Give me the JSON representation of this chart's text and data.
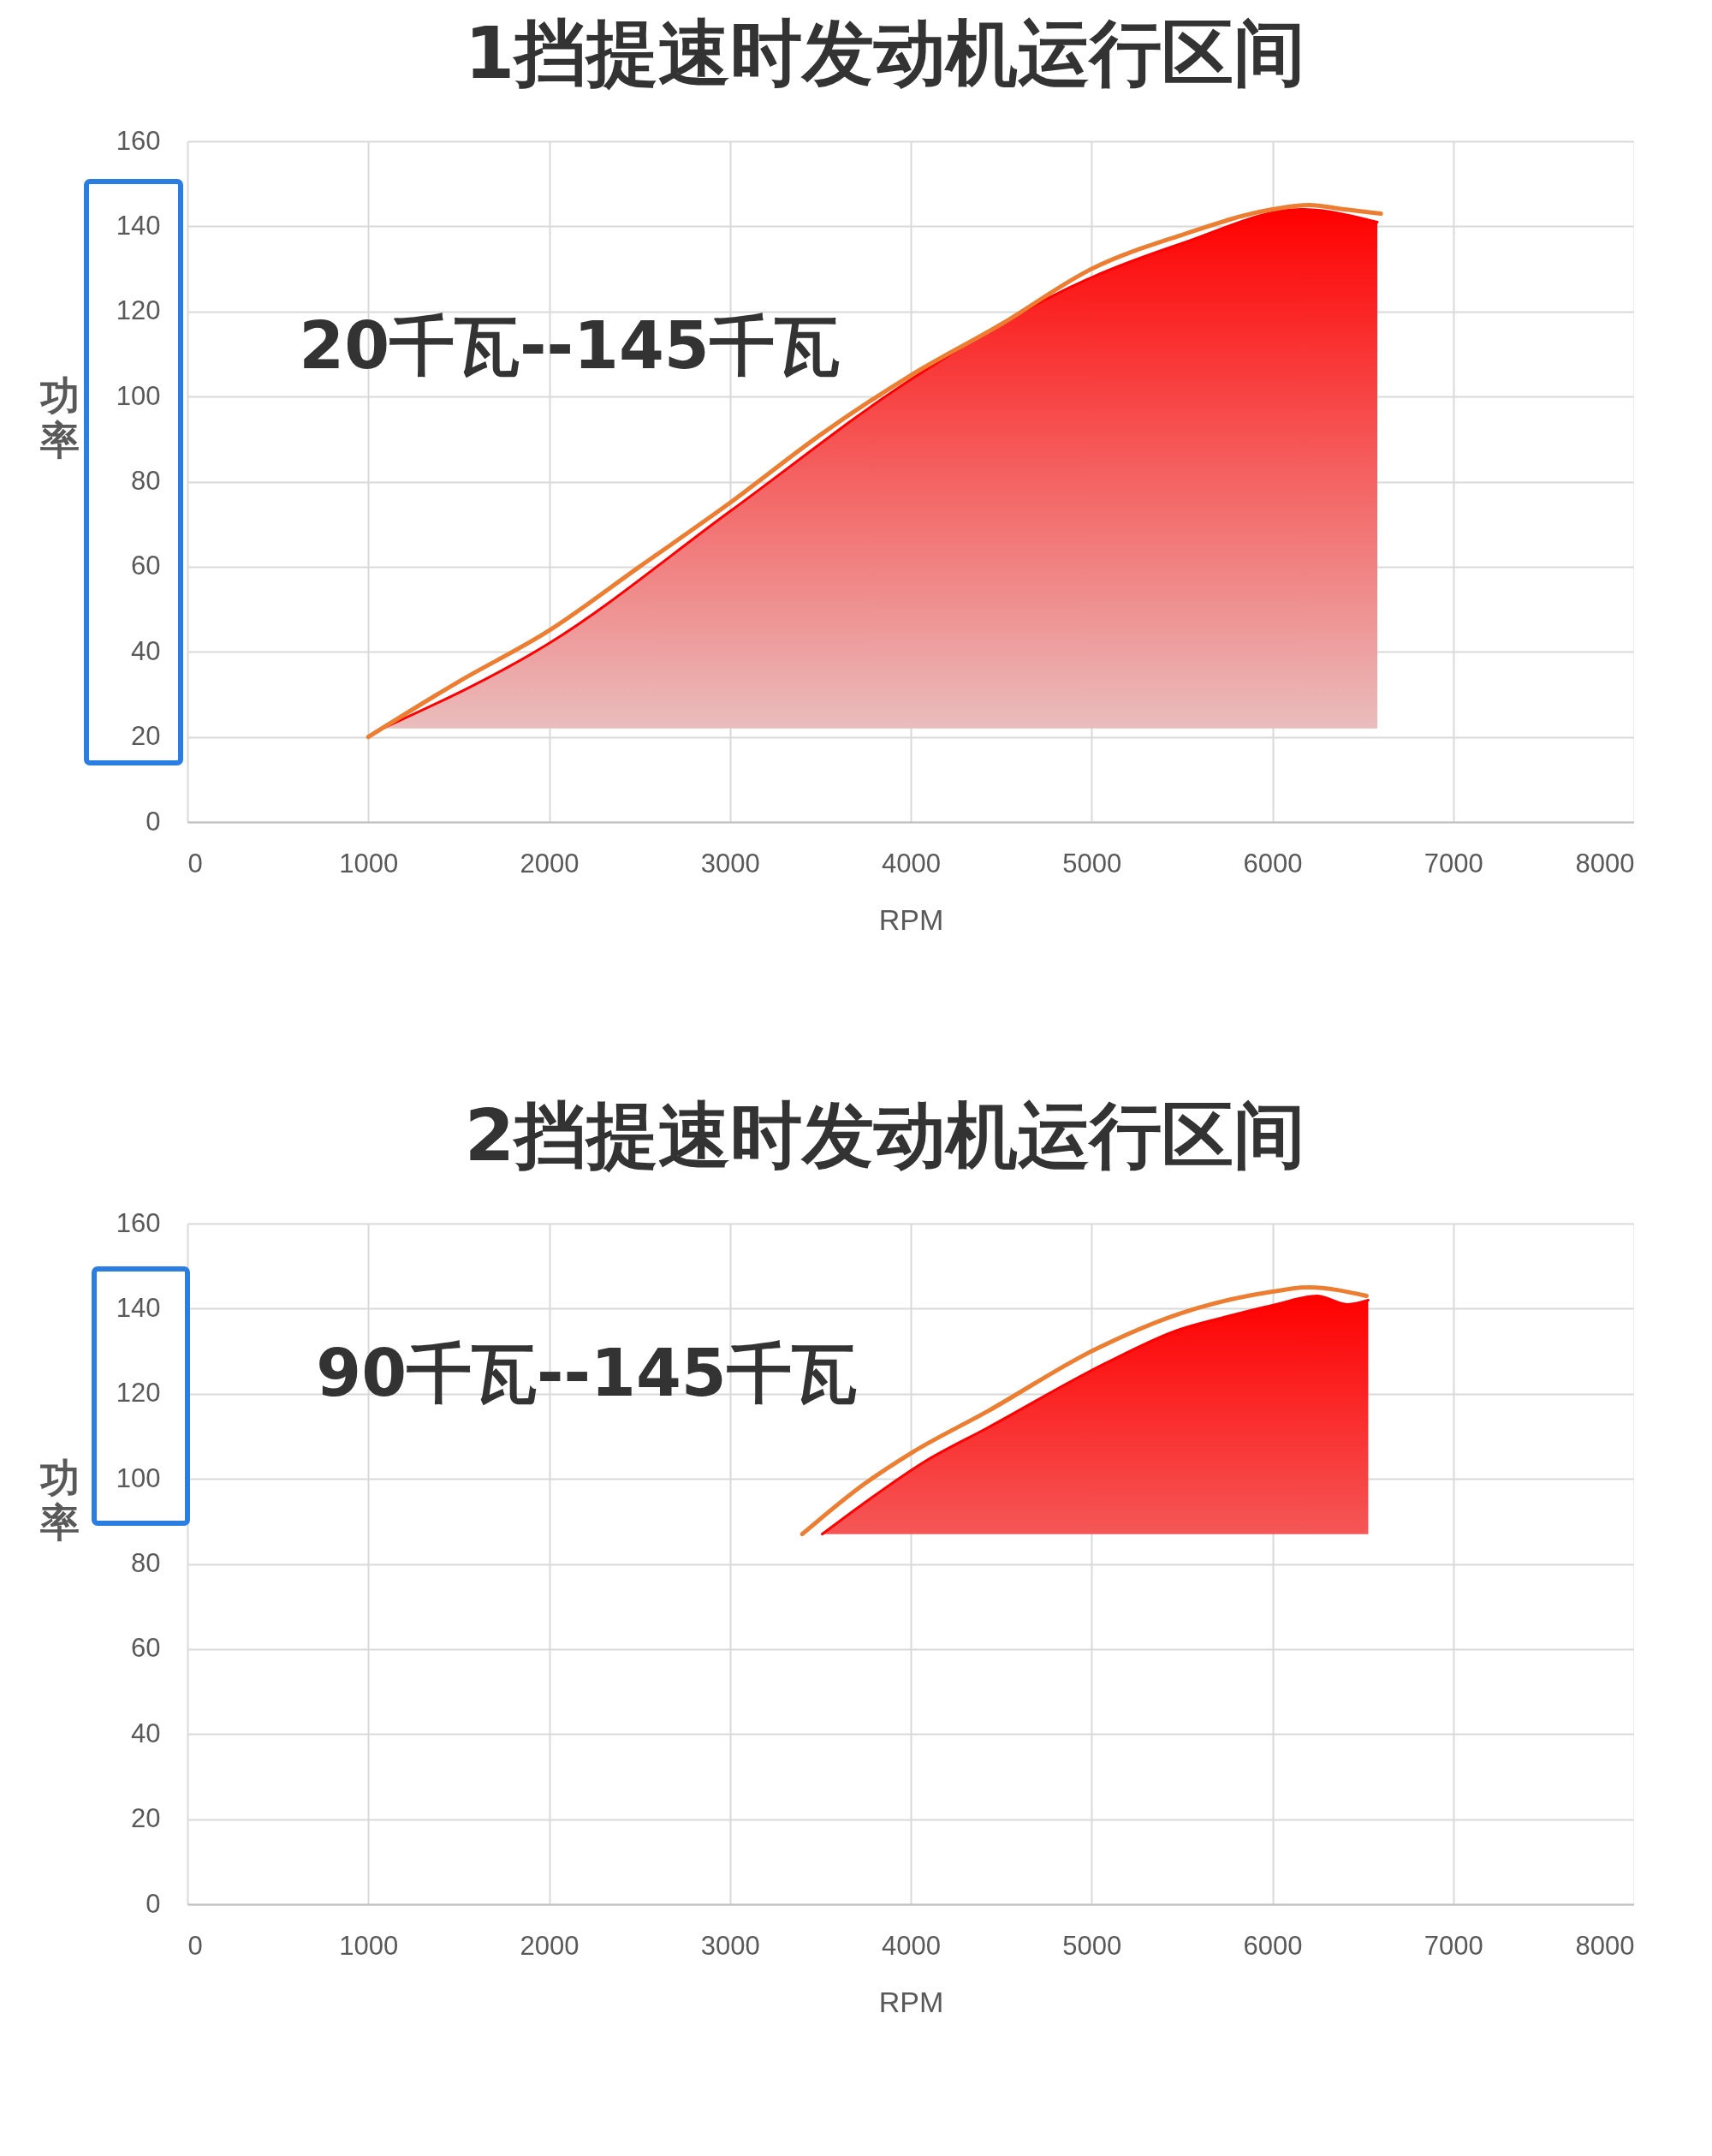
{
  "chart_data": [
    {
      "type": "line",
      "title": "1挡提速时发动机运行区间",
      "xlabel": "RPM",
      "ylabel": "功率",
      "annotations": [
        "20千瓦--145千瓦"
      ],
      "xlim": [
        0,
        8000
      ],
      "ylim": [
        0,
        160
      ],
      "xticks": [
        0,
        1000,
        2000,
        3000,
        4000,
        5000,
        6000,
        7000,
        8000
      ],
      "yticks": [
        0,
        20,
        40,
        60,
        80,
        100,
        120,
        140,
        160
      ],
      "grid": true,
      "series": [
        {
          "color": "#ff0000",
          "x": [
            1080,
            2000,
            3000,
            4000,
            5000,
            5500,
            6160,
            6580
          ],
          "values": [
            22,
            42,
            73,
            104,
            128,
            136,
            144,
            141
          ],
          "lower": [
            22,
            22,
            22,
            22,
            22,
            22,
            22,
            22
          ],
          "upper": [
            22,
            42,
            73,
            104,
            128,
            136,
            144,
            141
          ]
        },
        {
          "color": "#ed7d31",
          "x": [
            1000,
            1500,
            2000,
            2500,
            3000,
            3500,
            4000,
            4500,
            5000,
            5500,
            6000,
            6200,
            6400,
            6600
          ],
          "values": [
            20,
            33,
            45,
            60,
            75,
            91,
            105,
            117,
            130,
            138,
            144,
            145,
            144,
            143
          ]
        }
      ]
    },
    {
      "type": "line",
      "title": "2挡提速时发动机运行区间",
      "xlabel": "RPM",
      "ylabel": "功率",
      "annotations": [
        "90千瓦--145千瓦"
      ],
      "xlim": [
        0,
        8000
      ],
      "ylim": [
        0,
        160
      ],
      "xticks": [
        0,
        1000,
        2000,
        3000,
        4000,
        5000,
        6000,
        7000,
        8000
      ],
      "yticks": [
        0,
        20,
        40,
        60,
        80,
        100,
        120,
        140,
        160
      ],
      "grid": true,
      "series": [
        {
          "color": "#ff0000",
          "x": [
            3510,
            3765,
            4075,
            4425,
            5070,
            5480,
            5735,
            6020,
            6245,
            6415,
            6530
          ],
          "values": [
            87,
            95,
            104,
            112,
            127,
            135,
            138,
            141,
            143,
            141,
            142
          ],
          "lower": [
            87,
            87,
            87,
            87,
            87,
            87,
            87,
            87,
            87,
            87,
            87
          ],
          "upper": [
            87,
            95,
            104,
            112,
            127,
            135,
            138,
            141,
            143,
            141,
            142
          ]
        },
        {
          "color": "#ed7d31",
          "x": [
            3400,
            3750,
            4000,
            4430,
            5000,
            5500,
            6000,
            6200,
            6520
          ],
          "values": [
            87,
            99,
            106,
            116,
            130,
            139,
            144,
            145,
            143
          ]
        }
      ]
    }
  ]
}
